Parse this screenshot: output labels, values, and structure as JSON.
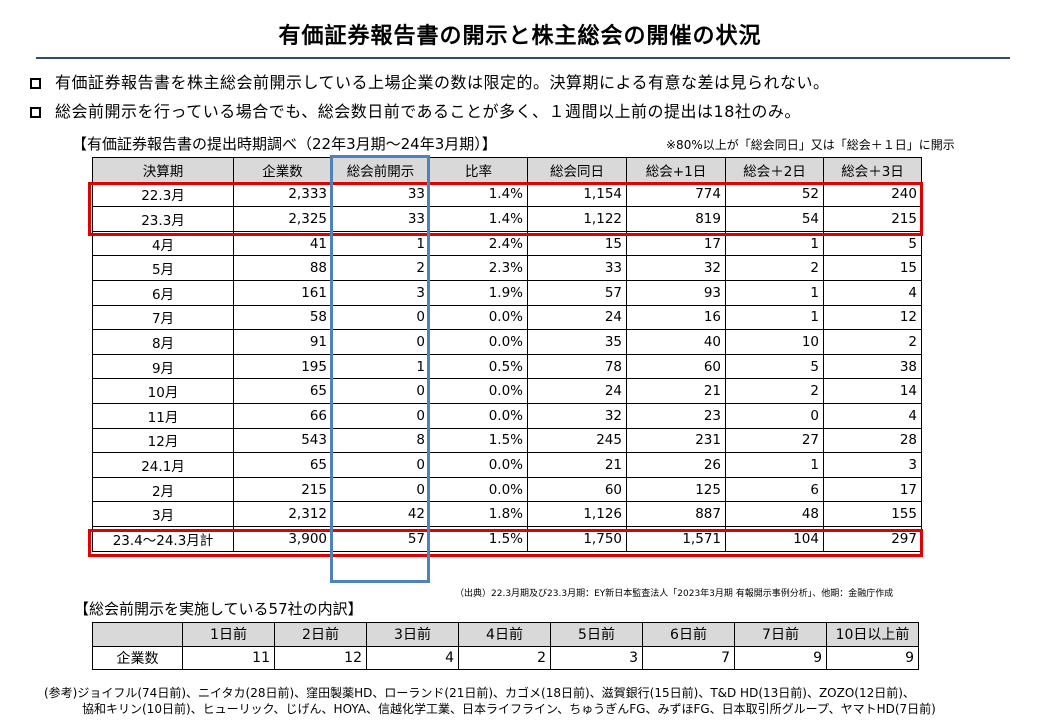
{
  "title": "有価証券報告書の開示と株主総会の開催の状況",
  "bullets": [
    "有価証券報告書を株主総会前開示している上場企業の数は限定的。決算期による有意な差は見られない。",
    "総会前開示を行っている場合でも、総会数日前であることが多く、１週間以上前の提出は18社のみ。"
  ],
  "main_table": {
    "caption": "【有価証券報告書の提出時期調べ（22年3月期～24年3月期）】",
    "note": "※80%以上が「総会同日」又は「総会＋１日」に開示",
    "headers": [
      "決算期",
      "企業数",
      "総会前開示",
      "比率",
      "総会同日",
      "総会+1日",
      "総会＋2日",
      "総会＋3日"
    ],
    "rows": [
      [
        "22.3月",
        "2,333",
        "33",
        "1.4%",
        "1,154",
        "774",
        "52",
        "240"
      ],
      [
        "23.3月",
        "2,325",
        "33",
        "1.4%",
        "1,122",
        "819",
        "54",
        "215"
      ],
      [
        "4月",
        "41",
        "1",
        "2.4%",
        "15",
        "17",
        "1",
        "5"
      ],
      [
        "5月",
        "88",
        "2",
        "2.3%",
        "33",
        "32",
        "2",
        "15"
      ],
      [
        "6月",
        "161",
        "3",
        "1.9%",
        "57",
        "93",
        "1",
        "4"
      ],
      [
        "7月",
        "58",
        "0",
        "0.0%",
        "24",
        "16",
        "1",
        "12"
      ],
      [
        "8月",
        "91",
        "0",
        "0.0%",
        "35",
        "40",
        "10",
        "2"
      ],
      [
        "9月",
        "195",
        "1",
        "0.5%",
        "78",
        "60",
        "5",
        "38"
      ],
      [
        "10月",
        "65",
        "0",
        "0.0%",
        "24",
        "21",
        "2",
        "14"
      ],
      [
        "11月",
        "66",
        "0",
        "0.0%",
        "32",
        "23",
        "0",
        "4"
      ],
      [
        "12月",
        "543",
        "8",
        "1.5%",
        "245",
        "231",
        "27",
        "28"
      ],
      [
        "24.1月",
        "65",
        "0",
        "0.0%",
        "21",
        "26",
        "1",
        "3"
      ],
      [
        "2月",
        "215",
        "0",
        "0.0%",
        "60",
        "125",
        "6",
        "17"
      ],
      [
        "3月",
        "2,312",
        "42",
        "1.8%",
        "1,126",
        "887",
        "48",
        "155"
      ],
      [
        "23.4～24.3月計",
        "3,900",
        "57",
        "1.5%",
        "1,750",
        "1,571",
        "104",
        "297"
      ]
    ],
    "source": "（出典）22.3月期及び23.3月期：EY新日本監査法人「2023年3月期 有報開示事例分析」、他期：金融庁作成"
  },
  "sub_table": {
    "caption": "【総会前開示を実施している57社の内訳】",
    "headers": [
      "",
      "1日前",
      "2日前",
      "3日前",
      "4日前",
      "5日前",
      "6日前",
      "7日前",
      "10日以上前"
    ],
    "row": [
      "企業数",
      "11",
      "12",
      "4",
      "2",
      "3",
      "7",
      "9",
      "9"
    ]
  },
  "reference": {
    "line1": "(参考)ジョイフル(74日前)、ニイタカ(28日前)、窪田製薬HD、ローランド(21日前)、カゴメ(18日前)、滋賀銀行(15日前)、T&D HD(13日前)、ZOZO(12日前)、",
    "line2": "協和キリン(10日前)、ヒューリック、じげん、HOYA、信越化学工業、日本ライフライン、ちゅうぎんFG、みずほFG、日本取引所グループ、ヤマトHD(7日前)"
  },
  "colors": {
    "highlight_red": "#e00000",
    "highlight_blue": "#4f81bd",
    "header_gray": "#d9d9d9",
    "title_rule": "#2e4a7d"
  }
}
